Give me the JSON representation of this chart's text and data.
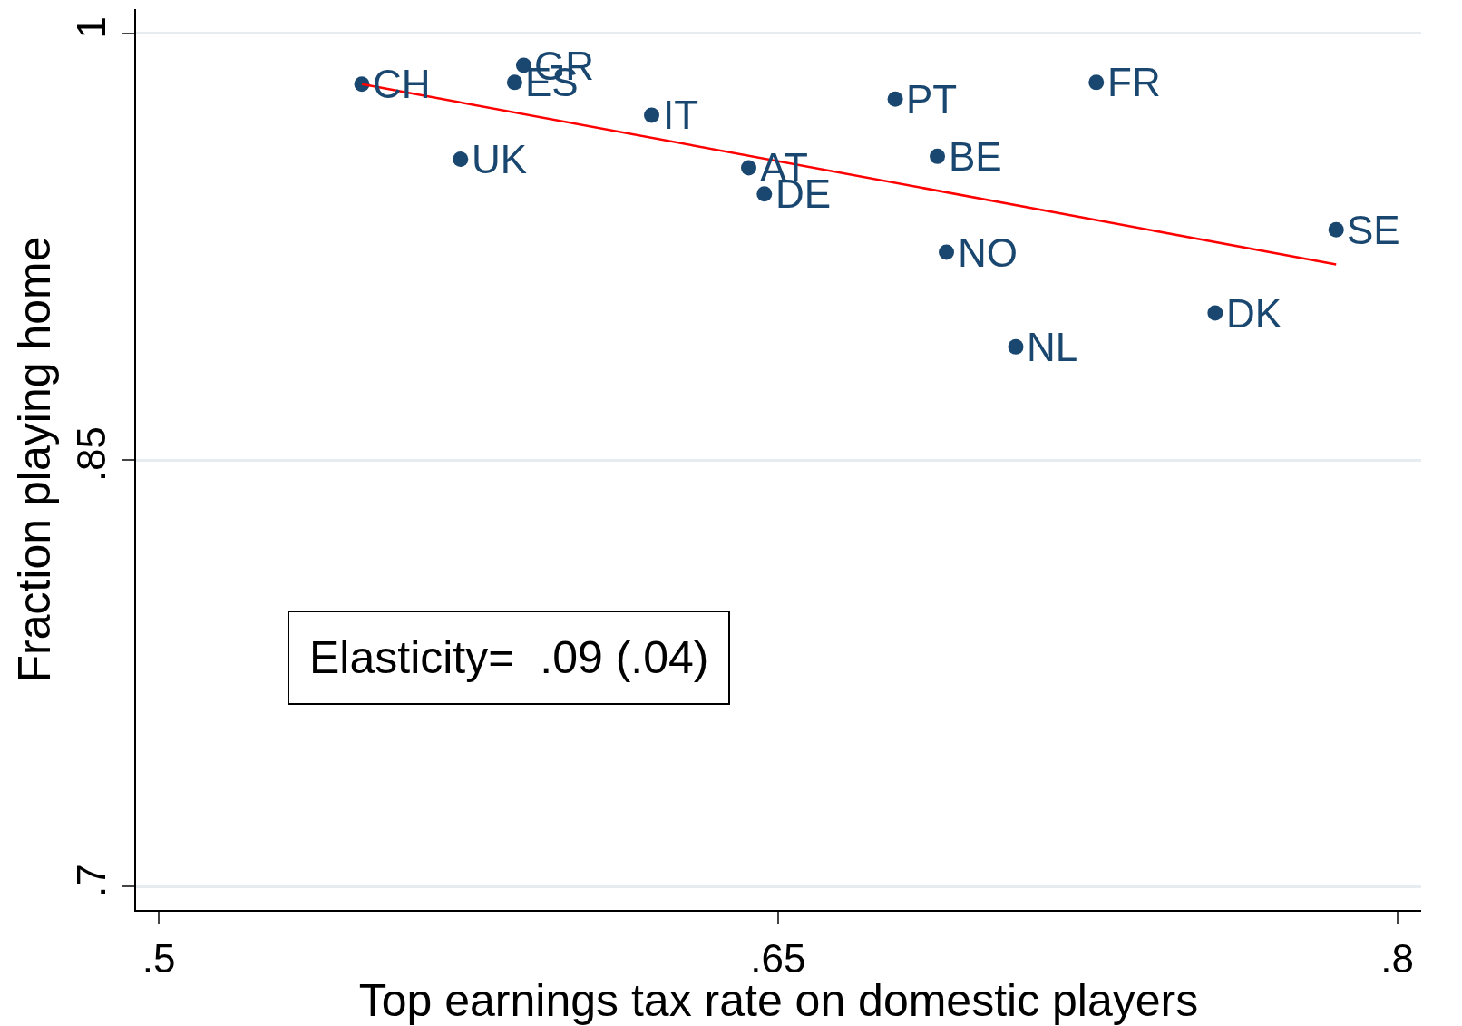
{
  "chart_data": {
    "type": "scatter",
    "xlabel": "Top earnings tax rate on domestic players",
    "ylabel": "Fraction playing home",
    "xlim": [
      0.4945,
      0.8058
    ],
    "ylim": [
      0.6918,
      1.0086
    ],
    "xticks": [
      {
        "value": 0.5,
        "label": ".5"
      },
      {
        "value": 0.65,
        "label": ".65"
      },
      {
        "value": 0.8,
        "label": ".8"
      }
    ],
    "yticks": [
      {
        "value": 0.7,
        "label": ".7"
      },
      {
        "value": 0.85,
        "label": ".85"
      },
      {
        "value": 1,
        "label": "1"
      }
    ],
    "grid": "y",
    "series": [
      {
        "color": "#1a476f",
        "marker": "circle",
        "x": [
          0.5492,
          0.5884,
          0.5862,
          0.6194,
          0.5731,
          0.6429,
          0.6467,
          0.6784,
          0.6886,
          0.6908,
          0.7076,
          0.7271,
          0.7559,
          0.7852
        ],
        "values": [
          0.9822,
          0.9888,
          0.9828,
          0.9713,
          0.9558,
          0.9528,
          0.9436,
          0.9769,
          0.9568,
          0.9231,
          0.8898,
          0.9828,
          0.9017,
          0.931
        ]
      },
      {
        "type": "line",
        "color": "#ff0000",
        "marker": "none",
        "line_style": "solid",
        "x": [
          0.5492,
          0.7852
        ],
        "values": [
          0.9822,
          0.9188
        ]
      }
    ],
    "annotations": [
      {
        "text": "CH",
        "x": 0.5492,
        "y": 0.9822
      },
      {
        "text": "GR",
        "x": 0.5884,
        "y": 0.9888
      },
      {
        "text": "ES",
        "x": 0.5862,
        "y": 0.9828
      },
      {
        "text": "IT",
        "x": 0.6194,
        "y": 0.9713
      },
      {
        "text": "UK",
        "x": 0.5731,
        "y": 0.9558
      },
      {
        "text": "AT",
        "x": 0.6429,
        "y": 0.9528
      },
      {
        "text": "DE",
        "x": 0.6467,
        "y": 0.9436
      },
      {
        "text": "PT",
        "x": 0.6784,
        "y": 0.9769
      },
      {
        "text": "BE",
        "x": 0.6886,
        "y": 0.9568
      },
      {
        "text": "NO",
        "x": 0.6908,
        "y": 0.9231
      },
      {
        "text": "NL",
        "x": 0.7076,
        "y": 0.8898
      },
      {
        "text": "FR",
        "x": 0.7271,
        "y": 0.9828
      },
      {
        "text": "DK",
        "x": 0.7559,
        "y": 0.9017
      },
      {
        "text": "SE",
        "x": 0.7852,
        "y": 0.931
      },
      "Elasticity=  .09 (.04)"
    ]
  }
}
